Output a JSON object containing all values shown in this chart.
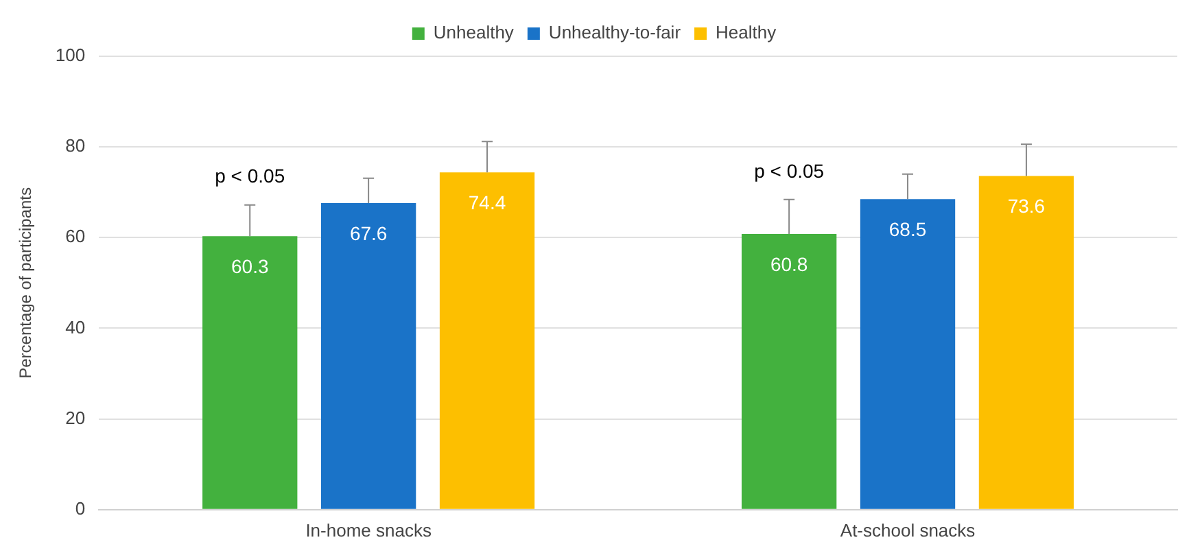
{
  "chart_data": {
    "type": "bar",
    "ylabel": "Percentage of participants",
    "categories": [
      "In-home snacks",
      "At-school snacks"
    ],
    "series": [
      {
        "name": "Unhealthy",
        "color": "#43b13e",
        "values": [
          60.3,
          60.8
        ],
        "errors": [
          [
            60.3,
            67.2
          ],
          [
            60.8,
            68.4
          ]
        ]
      },
      {
        "name": "Unhealthy-to-fair",
        "color": "#1a73c8",
        "values": [
          67.6,
          68.5
        ],
        "errors": [
          [
            67.6,
            73.1
          ],
          [
            68.5,
            74.0
          ]
        ]
      },
      {
        "name": "Healthy",
        "color": "#fdbf00",
        "values": [
          74.4,
          73.6
        ],
        "errors": [
          [
            74.4,
            81.2
          ],
          [
            73.6,
            80.6
          ]
        ]
      }
    ],
    "ylim": [
      0,
      100
    ],
    "yticks": [
      0,
      20,
      40,
      60,
      80,
      100
    ],
    "grid": "y",
    "legend": "top",
    "data_labels": true,
    "annotations": [
      "p < 0.05",
      "p < 0.05"
    ]
  }
}
